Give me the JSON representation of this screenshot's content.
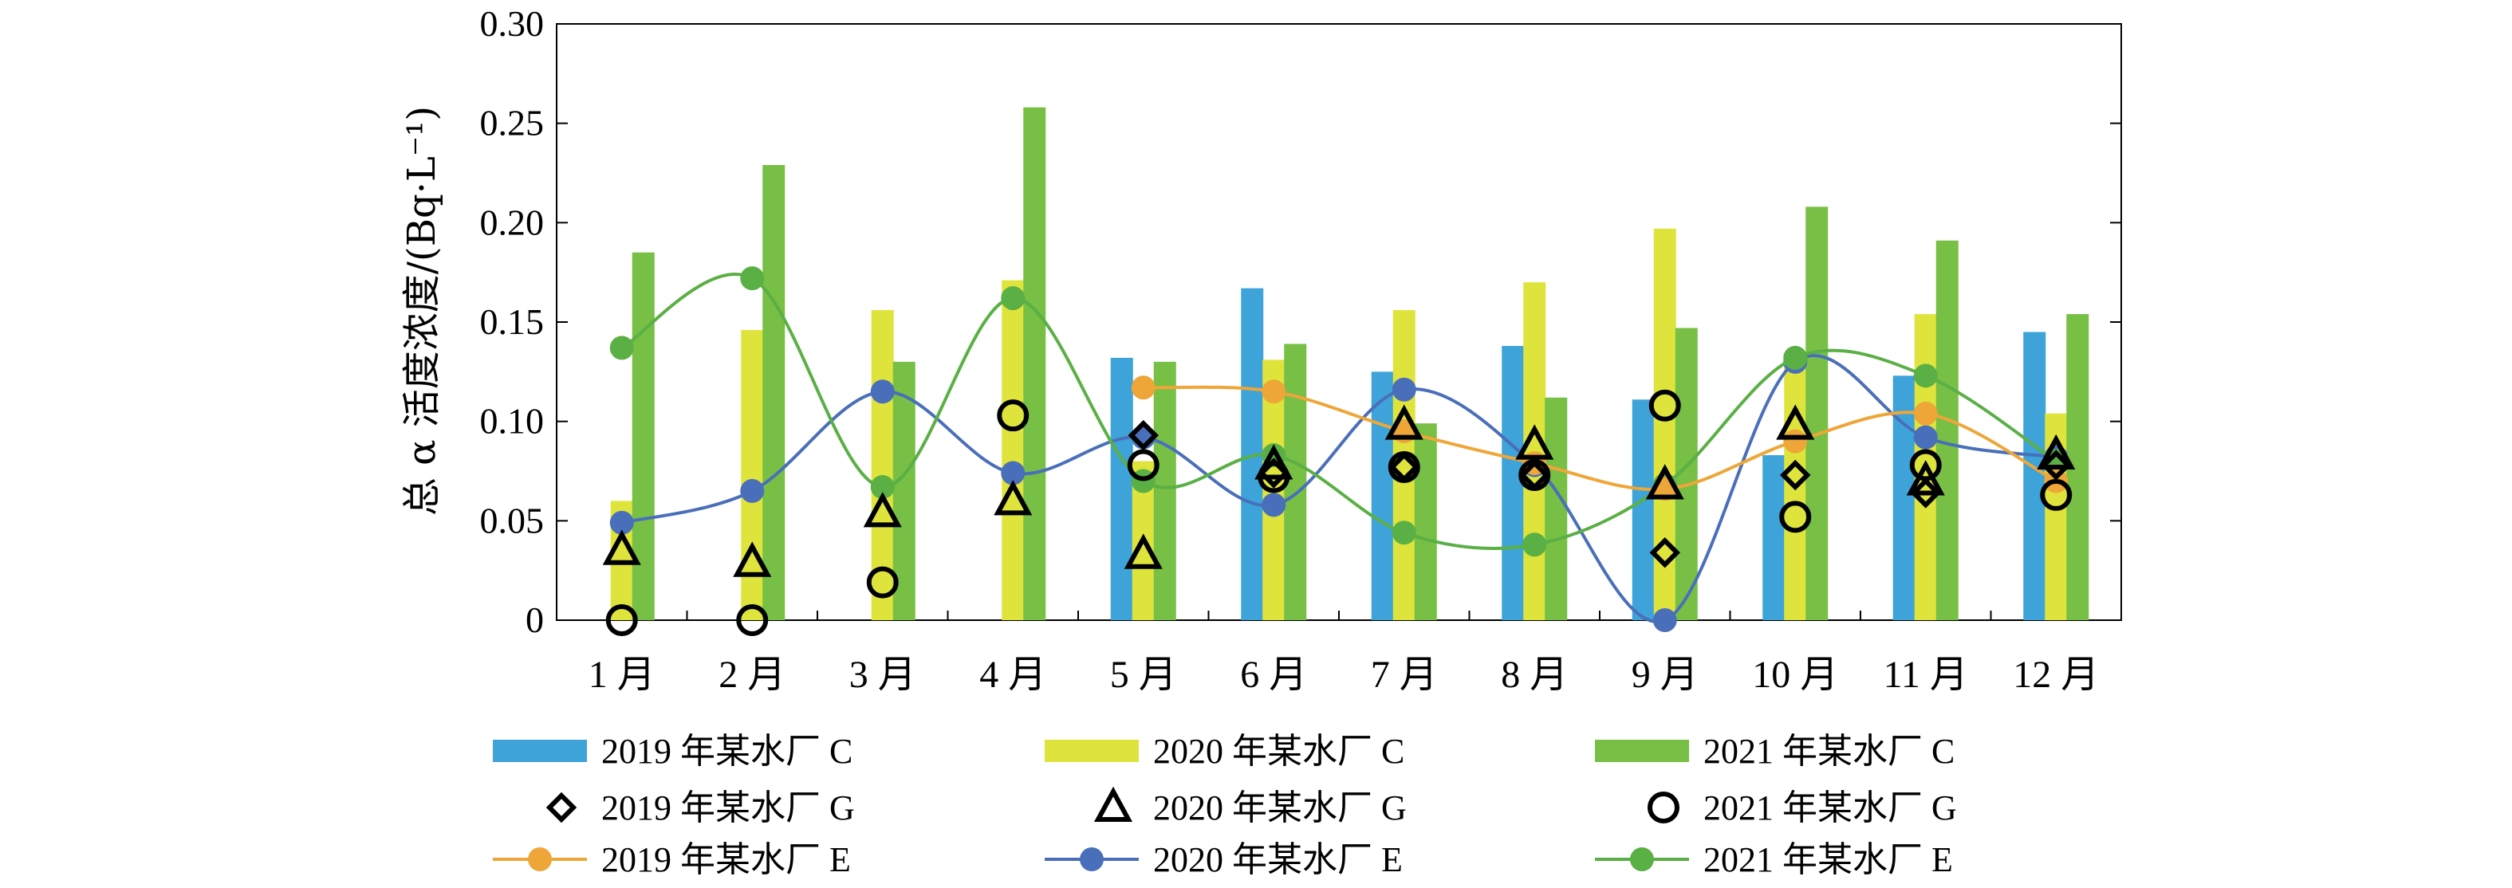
{
  "chart_data": {
    "type": "bar",
    "title": "",
    "xlabel": "",
    "ylabel": "总 α 活度浓度/(Bq·L⁻¹)",
    "ylim": [
      0,
      0.3
    ],
    "yticks": [
      0,
      0.05,
      0.1,
      0.15,
      0.2,
      0.25,
      0.3
    ],
    "ytick_labels": [
      "0",
      "0.05",
      "0.10",
      "0.15",
      "0.20",
      "0.25",
      "0.30"
    ],
    "categories": [
      "1 月",
      "2 月",
      "3 月",
      "4 月",
      "5 月",
      "6 月",
      "7 月",
      "8 月",
      "9 月",
      "10 月",
      "11 月",
      "12 月"
    ],
    "bar_series": [
      {
        "name": "2019 年某水厂 C",
        "color": "#3ea3d8",
        "values": [
          null,
          null,
          null,
          null,
          0.132,
          0.167,
          0.125,
          0.138,
          0.111,
          0.083,
          0.123,
          0.145
        ]
      },
      {
        "name": "2020 年某水厂 C",
        "color": "#dfe43c",
        "values": [
          0.06,
          0.146,
          0.156,
          0.171,
          0.08,
          0.131,
          0.156,
          0.17,
          0.197,
          0.128,
          0.154,
          0.104
        ]
      },
      {
        "name": "2021 年某水厂 C",
        "color": "#77bf45",
        "values": [
          0.185,
          0.229,
          0.13,
          0.258,
          0.13,
          0.139,
          0.099,
          0.112,
          0.147,
          0.208,
          0.191,
          0.154
        ]
      }
    ],
    "marker_series": [
      {
        "name": "2019 年某水厂 G",
        "marker": "diamond",
        "values": [
          null,
          null,
          null,
          null,
          0.093,
          0.074,
          0.077,
          0.073,
          0.034,
          0.073,
          0.064,
          0.078
        ]
      },
      {
        "name": "2020 年某水厂 G",
        "marker": "triangle",
        "values": [
          0.035,
          0.029,
          0.054,
          0.06,
          0.033,
          0.078,
          0.098,
          0.088,
          0.068,
          0.098,
          0.07,
          0.083
        ]
      },
      {
        "name": "2021 年某水厂 G",
        "marker": "circle",
        "values": [
          0.0,
          0.0,
          0.019,
          0.103,
          0.078,
          0.072,
          0.077,
          0.073,
          0.108,
          0.052,
          0.078,
          0.063
        ]
      }
    ],
    "line_series": [
      {
        "name": "2019 年某水厂 E",
        "color": "#eea638",
        "values": [
          null,
          null,
          null,
          null,
          0.117,
          0.115,
          0.095,
          0.079,
          0.066,
          0.09,
          0.104,
          0.07
        ]
      },
      {
        "name": "2020 年某水厂 E",
        "color": "#4a6fba",
        "values": [
          0.049,
          0.065,
          0.115,
          0.074,
          0.092,
          0.058,
          0.116,
          0.078,
          0.0,
          0.13,
          0.092,
          0.082
        ]
      },
      {
        "name": "2021 年某水厂 E",
        "color": "#5aaf45",
        "values": [
          0.137,
          0.172,
          0.067,
          0.162,
          0.07,
          0.083,
          0.044,
          0.038,
          0.068,
          0.132,
          0.123,
          0.08
        ]
      }
    ],
    "legend_position": "bottom"
  }
}
